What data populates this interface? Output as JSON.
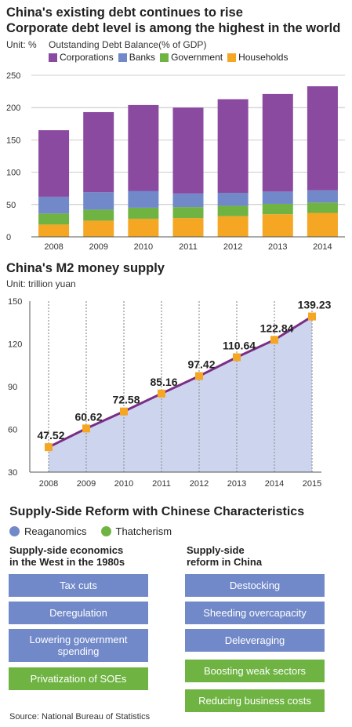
{
  "colors": {
    "corporations": "#8a4aa0",
    "banks": "#7189c9",
    "government": "#6fb443",
    "households": "#f5a623",
    "m2_line": "#7a2e86",
    "m2_fill": "#cdd5ee",
    "m2_marker": "#f5a623",
    "reaganomics": "#7189c9",
    "thatcherism": "#6fb443"
  },
  "section1": {
    "title_line1": "China's existing debt continues to rise",
    "title_line2": "Corporate debt level is among the highest in the world",
    "unit": "Unit: %",
    "subtitle": "Outstanding Debt Balance(% of GDP)"
  },
  "section2": {
    "title": "China's M2 money supply",
    "unit": "Unit: trillion yuan"
  },
  "chart_data": [
    {
      "type": "bar",
      "stacked": true,
      "title": "Outstanding Debt Balance(% of GDP)",
      "categories": [
        "2008",
        "2009",
        "2010",
        "2011",
        "2012",
        "2013",
        "2014"
      ],
      "series": [
        {
          "name": "Corporations",
          "values": [
            103,
            124,
            133,
            133,
            145,
            151,
            161
          ]
        },
        {
          "name": "Banks",
          "values": [
            26,
            27,
            26,
            21,
            20,
            19,
            19
          ]
        },
        {
          "name": "Government",
          "values": [
            17,
            17,
            17,
            17,
            16,
            16,
            16
          ]
        },
        {
          "name": "Households",
          "values": [
            19,
            25,
            28,
            29,
            32,
            35,
            37
          ]
        }
      ],
      "ylim": [
        0,
        250
      ],
      "yticks": [
        0,
        50,
        100,
        150,
        200,
        250
      ],
      "grid": true,
      "legend": "top"
    },
    {
      "type": "area",
      "title": "China's M2 money supply",
      "x": [
        "2008",
        "2009",
        "2010",
        "2011",
        "2012",
        "2013",
        "2014",
        "2015"
      ],
      "values": [
        47.52,
        60.62,
        72.58,
        85.16,
        97.42,
        110.64,
        122.84,
        139.23
      ],
      "data_labels": [
        "47.52",
        "60.62",
        "72.58",
        "85.16",
        "97.42",
        "110.64",
        "122.84",
        "139.23"
      ],
      "ylim": [
        30,
        150
      ],
      "yticks": [
        30,
        60,
        90,
        120,
        150
      ],
      "grid": true
    }
  ],
  "section3": {
    "title": "Supply-Side Reform with Chinese Characteristics",
    "legend": [
      {
        "label": "Reaganomics",
        "key": "reaganomics"
      },
      {
        "label": "Thatcherism",
        "key": "thatcherism"
      }
    ],
    "left_heading": "Supply-side economics\nin the West in the  1980s",
    "right_heading": "Supply-side\nreform in China",
    "left_items": [
      {
        "label": "Tax cuts",
        "type": "reaganomics"
      },
      {
        "label": "Deregulation",
        "type": "reaganomics"
      },
      {
        "label": "Lowering government\nspending",
        "type": "reaganomics"
      },
      {
        "label": "Privatization of SOEs",
        "type": "thatcherism"
      }
    ],
    "right_items": [
      {
        "label": "Destocking",
        "type": "reaganomics"
      },
      {
        "label": "Sheeding overcapacity",
        "type": "reaganomics"
      },
      {
        "label": "Deleveraging",
        "type": "reaganomics"
      },
      {
        "label": "Boosting weak sectors",
        "type": "thatcherism"
      },
      {
        "label": "Reducing business costs",
        "type": "thatcherism"
      }
    ]
  },
  "source": "Source: National Bureau of Statistics"
}
